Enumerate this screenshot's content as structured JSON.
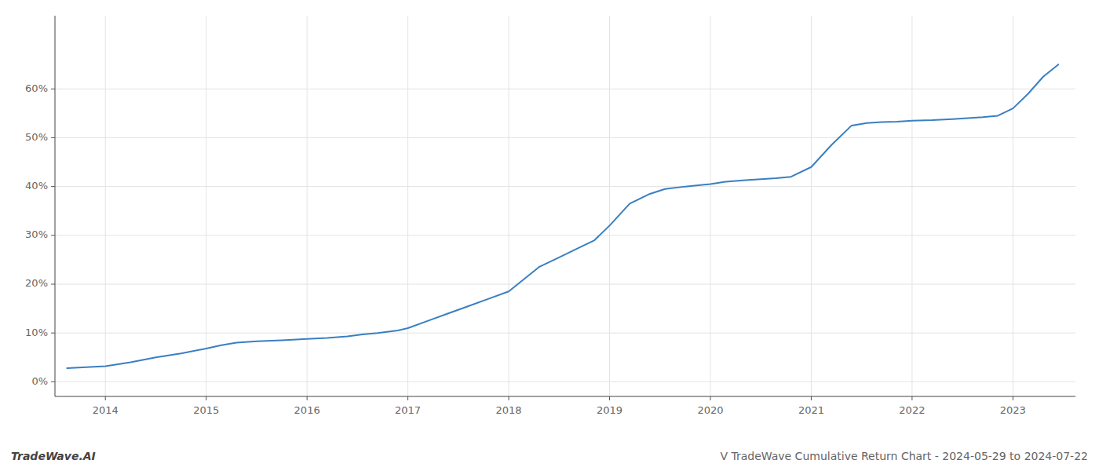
{
  "chart_data": {
    "type": "line",
    "title": "V TradeWave Cumulative Return Chart - 2024-05-29 to 2024-07-22",
    "annotations": [
      "TradeWave.AI"
    ],
    "color": "#3a7fc1",
    "grid": true,
    "x": [
      2013.62,
      2014.0,
      2014.25,
      2014.5,
      2014.75,
      2015.0,
      2015.15,
      2015.3,
      2015.5,
      2015.75,
      2016.0,
      2016.2,
      2016.4,
      2016.55,
      2016.7,
      2016.9,
      2017.0,
      2017.2,
      2017.4,
      2017.6,
      2017.8,
      2018.0,
      2018.15,
      2018.3,
      2018.5,
      2018.7,
      2018.85,
      2019.0,
      2019.2,
      2019.4,
      2019.55,
      2019.75,
      2019.9,
      2020.0,
      2020.15,
      2020.35,
      2020.5,
      2020.65,
      2020.8,
      2021.0,
      2021.2,
      2021.4,
      2021.55,
      2021.7,
      2021.85,
      2022.0,
      2022.2,
      2022.4,
      2022.55,
      2022.7,
      2022.85,
      2023.0,
      2023.15,
      2023.3,
      2023.45
    ],
    "values": [
      2.8,
      3.2,
      4.0,
      5.0,
      5.8,
      6.8,
      7.5,
      8.0,
      8.3,
      8.5,
      8.8,
      9.0,
      9.3,
      9.7,
      10.0,
      10.5,
      11.0,
      12.5,
      14.0,
      15.5,
      17.0,
      18.5,
      21.0,
      23.5,
      25.5,
      27.5,
      29.0,
      32.0,
      36.5,
      38.5,
      39.5,
      40.0,
      40.3,
      40.5,
      41.0,
      41.3,
      41.5,
      41.7,
      42.0,
      44.0,
      48.5,
      52.5,
      53.0,
      53.2,
      53.3,
      53.5,
      53.6,
      53.8,
      54.0,
      54.2,
      54.5,
      56.0,
      59.0,
      62.5,
      65.0
    ],
    "xlim": [
      2013.5,
      2023.62
    ],
    "xticks": [
      2014,
      2015,
      2016,
      2017,
      2018,
      2019,
      2020,
      2021,
      2022,
      2023
    ],
    "ylim": [
      -3,
      75
    ],
    "yticks": [
      {
        "value": 0,
        "label": "0%"
      },
      {
        "value": 10,
        "label": "10%"
      },
      {
        "value": 20,
        "label": "20%"
      },
      {
        "value": 30,
        "label": "30%"
      },
      {
        "value": 40,
        "label": "40%"
      },
      {
        "value": 50,
        "label": "50%"
      },
      {
        "value": 60,
        "label": "60%"
      }
    ]
  }
}
